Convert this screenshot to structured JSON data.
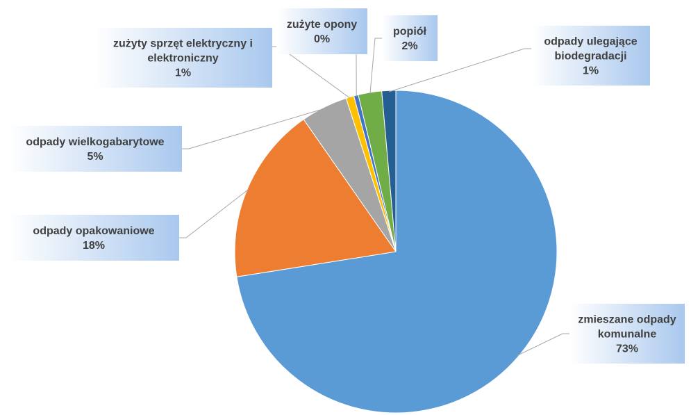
{
  "chart_data": {
    "type": "pie",
    "title": "",
    "slices": [
      {
        "name": "zmieszane odpady komunalne",
        "label_lines": [
          "zmieszane odpady",
          "komunalne"
        ],
        "value": 72.5,
        "label": "73%",
        "color": "#5b9bd5"
      },
      {
        "name": "odpady opakowaniowe",
        "label_lines": [
          "odpady opakowaniowe"
        ],
        "value": 17.8,
        "label": "18%",
        "color": "#ed7d31"
      },
      {
        "name": "odpady wielkogabarytowe",
        "label_lines": [
          "odpady wielkogabarytowe"
        ],
        "value": 4.7,
        "label": "5%",
        "color": "#a5a5a5"
      },
      {
        "name": "zużyty sprzęt elektryczny i elektroniczny",
        "label_lines": [
          "zużyty sprzęt elektryczny i",
          "elektroniczny"
        ],
        "value": 0.8,
        "label": "1%",
        "color": "#ffc000"
      },
      {
        "name": "zużyte opony",
        "label_lines": [
          "zużyte opony"
        ],
        "value": 0.45,
        "label": "0%",
        "color": "#4472c4"
      },
      {
        "name": "popiół",
        "label_lines": [
          "popiół"
        ],
        "value": 2.35,
        "label": "2%",
        "color": "#70ad47"
      },
      {
        "name": "odpady ulegające biodegradacji",
        "label_lines": [
          "odpady ulegające",
          "biodegradacji"
        ],
        "value": 1.4,
        "label": "1%",
        "color": "#255e91"
      }
    ],
    "legend": "none",
    "data_labels": "callouts"
  }
}
